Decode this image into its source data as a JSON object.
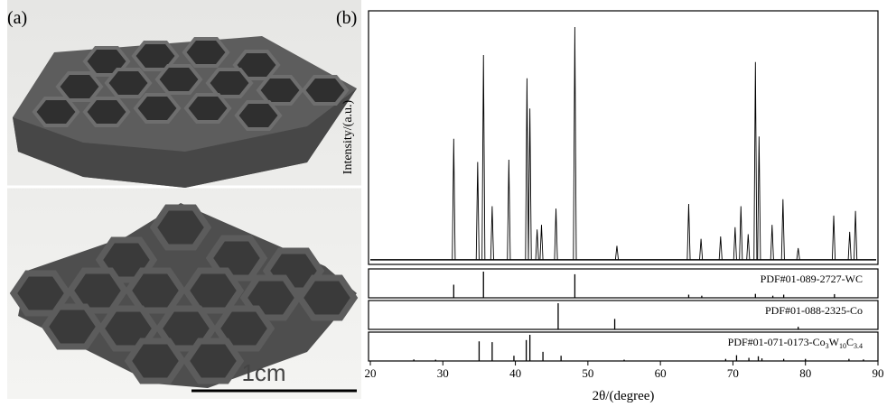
{
  "photo": {
    "label": "(a)",
    "scale_bar": "1cm"
  },
  "chart_data": {
    "type": "line",
    "label": "(b)",
    "xlabel": "2θ/(degree)",
    "ylabel": "Intensity/(a.u.)",
    "xlim": [
      20,
      90
    ],
    "xticks": [
      20,
      30,
      40,
      50,
      60,
      70,
      80,
      90
    ],
    "ylim": [
      -2,
      107
    ],
    "color": "#000000",
    "x": [
      31.5,
      34.8,
      35.6,
      36.8,
      39.1,
      41.6,
      42.0,
      43.0,
      43.6,
      45.6,
      48.2,
      54.0,
      63.9,
      65.6,
      68.3,
      70.3,
      71.1,
      72.1,
      73.1,
      73.6,
      75.4,
      76.9,
      79.0,
      83.9,
      86.1,
      86.9
    ],
    "values": [
      52,
      42,
      88,
      23,
      43,
      78,
      65,
      13,
      15,
      22,
      100,
      6,
      24,
      9,
      10,
      14,
      23,
      11,
      85,
      53,
      15,
      26,
      5,
      19,
      12,
      21
    ],
    "references": [
      {
        "label_parts": [
          {
            "text": "PDF#01-089-2727-WC"
          }
        ],
        "ylim": [
          0,
          100
        ],
        "x": [
          31.5,
          35.6,
          48.2,
          63.9,
          65.7,
          73.1,
          75.5,
          77.0,
          84.0
        ],
        "values": [
          50,
          100,
          90,
          12,
          8,
          15,
          8,
          12,
          14
        ]
      },
      {
        "label_parts": [
          {
            "text": "PDF#01-088-2325-Co"
          }
        ],
        "ylim": [
          0,
          100
        ],
        "x": [
          45.9,
          53.7,
          79.0
        ],
        "values": [
          100,
          40,
          10
        ]
      },
      {
        "label_parts": [
          {
            "text": "PDF#01-071-0173-Co"
          },
          {
            "text": "3",
            "sub": true
          },
          {
            "text": "W"
          },
          {
            "text": "10",
            "sub": true
          },
          {
            "text": "C"
          },
          {
            "text": "3.4",
            "sub": true
          }
        ],
        "ylim": [
          0,
          100
        ],
        "x": [
          26.0,
          29.0,
          35.0,
          36.8,
          39.8,
          41.5,
          42.0,
          43.8,
          46.3,
          55.0,
          69.0,
          70.5,
          72.2,
          73.5,
          74.0,
          77.0,
          80.0,
          86.0,
          88.0
        ],
        "values": [
          6,
          5,
          75,
          72,
          20,
          80,
          100,
          35,
          20,
          5,
          8,
          22,
          12,
          18,
          10,
          8,
          8,
          8,
          6
        ]
      }
    ]
  }
}
